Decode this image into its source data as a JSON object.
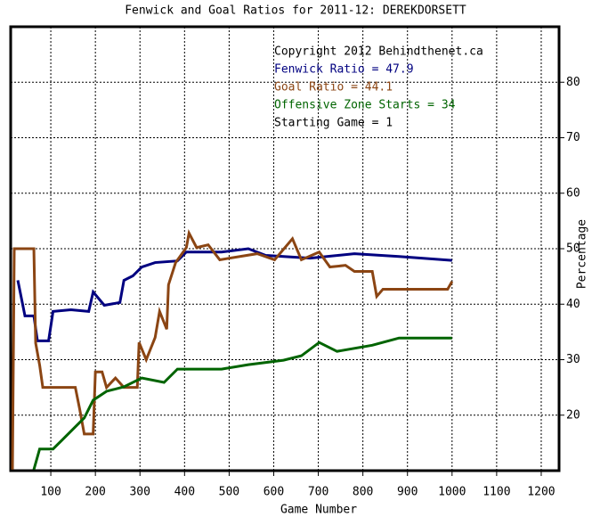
{
  "chart_data": {
    "type": "line",
    "title": "Fenwick and Goal Ratios for 2011-12: DEREKDORSETT",
    "x_label": "Game Number",
    "y_label": "Percentage",
    "annotations": [
      "Copyright 2012 Behindthenet.ca",
      "Starting Game = 1"
    ],
    "xlim": [
      10,
      1240
    ],
    "ylim": [
      10,
      90
    ],
    "xticks": [
      100,
      200,
      300,
      400,
      500,
      600,
      700,
      800,
      900,
      1000,
      1100,
      1200
    ],
    "yticks": [
      20,
      30,
      40,
      50,
      60,
      70,
      80
    ],
    "grid": true,
    "series": [
      {
        "name": "Fenwick Ratio = 47.9",
        "color": "#000080",
        "x": [
          26,
          42,
          62,
          70,
          95,
          105,
          145,
          185,
          195,
          220,
          255,
          264,
          284,
          304,
          334,
          384,
          404,
          483,
          543,
          582,
          682,
          781,
          881,
          1000
        ],
        "values": [
          44.3,
          37.9,
          37.9,
          33.4,
          33.4,
          38.7,
          39,
          38.7,
          42.2,
          39.8,
          40.3,
          44.3,
          45.1,
          46.7,
          47.5,
          47.8,
          49.4,
          49.4,
          50,
          48.8,
          48.3,
          49.1,
          48.6,
          47.9
        ]
      },
      {
        "name": "Goal Ratio = 44.1",
        "color": "#8b4513",
        "x": [
          14,
          18,
          62,
          66,
          75,
          82,
          155,
          165,
          175,
          195,
          200,
          215,
          225,
          245,
          264,
          294,
          298,
          314,
          334,
          344,
          360,
          364,
          380,
          404,
          410,
          427,
          453,
          479,
          563,
          602,
          642,
          662,
          702,
          726,
          761,
          781,
          821,
          831,
          845,
          990,
          1000
        ],
        "values": [
          10.2,
          50,
          50,
          33,
          29,
          25,
          25,
          21,
          16.6,
          16.6,
          27.8,
          27.8,
          25,
          26.7,
          25,
          25,
          33.1,
          30,
          34,
          38.7,
          35.5,
          43.5,
          47.5,
          50.2,
          52.8,
          50.2,
          50.7,
          48,
          49.1,
          48,
          51.8,
          48,
          49.4,
          46.7,
          47,
          45.9,
          45.9,
          41.4,
          42.7,
          42.7,
          44.1
        ]
      },
      {
        "name": "Offensive Zone Starts = 34",
        "color": "#006400",
        "x": [
          62,
          75,
          105,
          125,
          155,
          175,
          195,
          225,
          264,
          304,
          354,
          384,
          483,
          543,
          622,
          662,
          702,
          742,
          821,
          881,
          1000
        ],
        "values": [
          10.2,
          13.9,
          13.9,
          15.5,
          17.9,
          19.5,
          22.7,
          24.3,
          25.1,
          26.7,
          25.9,
          28.3,
          28.3,
          29.1,
          29.9,
          30.7,
          33.1,
          31.5,
          32.6,
          33.9,
          33.9
        ]
      }
    ]
  }
}
